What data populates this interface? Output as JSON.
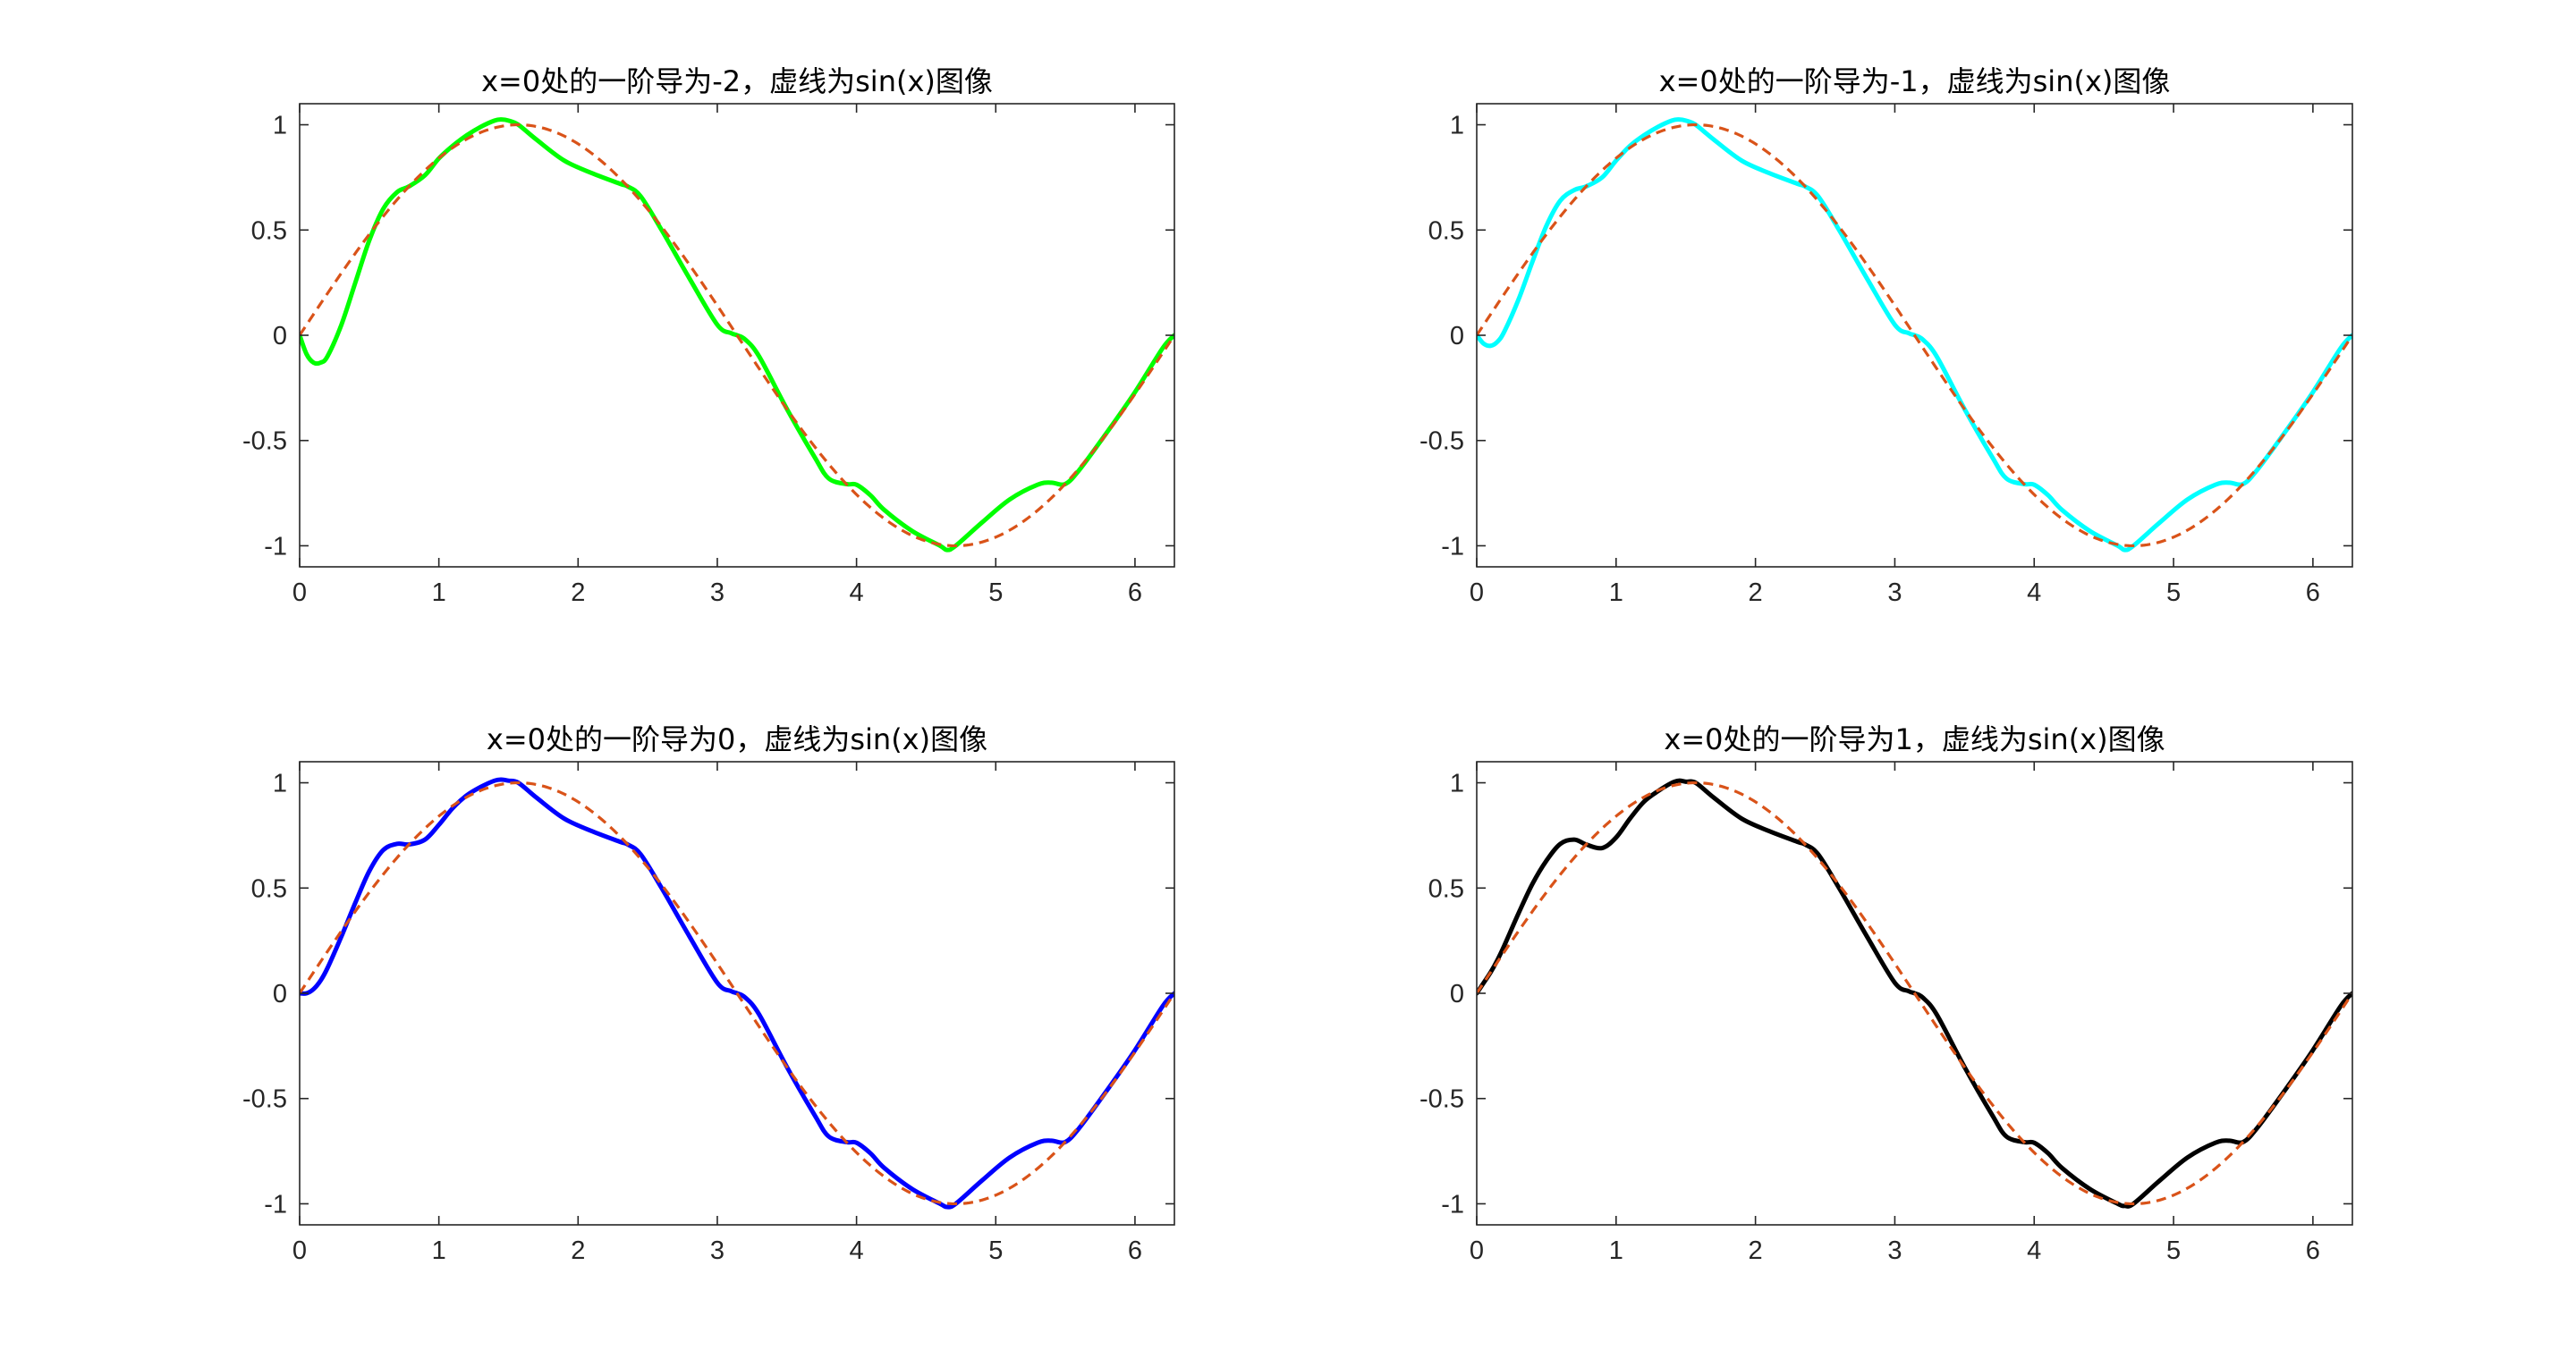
{
  "chart_data": [
    {
      "type": "line",
      "title": "x=0处的一阶导为-2，虚线为sin(x)图像",
      "xlim": [
        0,
        6.2832
      ],
      "ylim": [
        -1.1,
        1.1
      ],
      "xticks": [
        0,
        1,
        2,
        3,
        4,
        5,
        6
      ],
      "xtick_labels": [
        "0",
        "1",
        "2",
        "3",
        "4",
        "5",
        "6"
      ],
      "yticks": [
        1,
        0.5,
        0,
        -0.5,
        -1
      ],
      "ytick_labels": [
        "1",
        "0.5",
        "0",
        "-0.5",
        "-1"
      ],
      "grid": false,
      "series": [
        {
          "style": "solid",
          "color": "#00ff00",
          "x": [
            0,
            0.05,
            0.1,
            0.15,
            0.2,
            0.3,
            0.4,
            0.5,
            0.6,
            0.7,
            0.785,
            0.9,
            1.0,
            1.1,
            1.2,
            1.3,
            1.4,
            1.45,
            1.5,
            1.571,
            1.7,
            1.9,
            2.1,
            2.3,
            2.356,
            2.45,
            2.6,
            2.8,
            3.0,
            3.1,
            3.142,
            3.2,
            3.3,
            3.5,
            3.7,
            3.8,
            3.927,
            4.0,
            4.1,
            4.2,
            4.4,
            4.6,
            4.65,
            4.712,
            4.9,
            5.1,
            5.3,
            5.4,
            5.498,
            5.6,
            5.8,
            6.0,
            6.2,
            6.283
          ],
          "y": [
            0,
            -0.09,
            -0.13,
            -0.13,
            -0.1,
            0.05,
            0.25,
            0.45,
            0.6,
            0.68,
            0.707,
            0.76,
            0.84,
            0.9,
            0.95,
            0.99,
            1.02,
            1.025,
            1.02,
            1.0,
            0.93,
            0.83,
            0.77,
            0.72,
            0.707,
            0.66,
            0.5,
            0.27,
            0.05,
            0.01,
            0.0,
            -0.02,
            -0.1,
            -0.35,
            -0.58,
            -0.68,
            -0.707,
            -0.71,
            -0.76,
            -0.83,
            -0.93,
            -1.0,
            -1.02,
            -1.0,
            -0.89,
            -0.78,
            -0.71,
            -0.7,
            -0.707,
            -0.64,
            -0.46,
            -0.27,
            -0.06,
            0.0
          ]
        },
        {
          "style": "dashed",
          "color": "#d95319",
          "function": "sin(x)",
          "x_range": [
            0,
            6.2832
          ]
        }
      ]
    },
    {
      "type": "line",
      "title": "x=0处的一阶导为-1，虚线为sin(x)图像",
      "xlim": [
        0,
        6.2832
      ],
      "ylim": [
        -1.1,
        1.1
      ],
      "xticks": [
        0,
        1,
        2,
        3,
        4,
        5,
        6
      ],
      "xtick_labels": [
        "0",
        "1",
        "2",
        "3",
        "4",
        "5",
        "6"
      ],
      "yticks": [
        1,
        0.5,
        0,
        -0.5,
        -1
      ],
      "ytick_labels": [
        "1",
        "0.5",
        "0",
        "-0.5",
        "-1"
      ],
      "grid": false,
      "series": [
        {
          "style": "solid",
          "color": "#00ffff",
          "x": [
            0,
            0.05,
            0.1,
            0.15,
            0.2,
            0.3,
            0.4,
            0.5,
            0.6,
            0.7,
            0.785,
            0.9,
            1.0,
            1.1,
            1.2,
            1.3,
            1.4,
            1.45,
            1.5,
            1.571,
            1.7,
            1.9,
            2.1,
            2.3,
            2.356,
            2.45,
            2.6,
            2.8,
            3.0,
            3.1,
            3.142,
            3.2,
            3.3,
            3.5,
            3.7,
            3.8,
            3.927,
            4.0,
            4.1,
            4.2,
            4.4,
            4.6,
            4.65,
            4.712,
            4.9,
            5.1,
            5.3,
            5.4,
            5.498,
            5.6,
            5.8,
            6.0,
            6.2,
            6.283
          ],
          "y": [
            0,
            -0.04,
            -0.05,
            -0.03,
            0.02,
            0.17,
            0.35,
            0.52,
            0.64,
            0.69,
            0.707,
            0.75,
            0.83,
            0.9,
            0.95,
            0.99,
            1.02,
            1.025,
            1.02,
            1.0,
            0.93,
            0.83,
            0.77,
            0.72,
            0.707,
            0.66,
            0.5,
            0.27,
            0.05,
            0.01,
            0.0,
            -0.02,
            -0.1,
            -0.35,
            -0.58,
            -0.68,
            -0.707,
            -0.71,
            -0.76,
            -0.83,
            -0.93,
            -1.0,
            -1.02,
            -1.0,
            -0.89,
            -0.78,
            -0.71,
            -0.7,
            -0.707,
            -0.64,
            -0.46,
            -0.27,
            -0.06,
            0.0
          ]
        },
        {
          "style": "dashed",
          "color": "#d95319",
          "function": "sin(x)",
          "x_range": [
            0,
            6.2832
          ]
        }
      ]
    },
    {
      "type": "line",
      "title": "x=0处的一阶导为0，虚线为sin(x)图像",
      "xlim": [
        0,
        6.2832
      ],
      "ylim": [
        -1.1,
        1.1
      ],
      "xticks": [
        0,
        1,
        2,
        3,
        4,
        5,
        6
      ],
      "xtick_labels": [
        "0",
        "1",
        "2",
        "3",
        "4",
        "5",
        "6"
      ],
      "yticks": [
        1,
        0.5,
        0,
        -0.5,
        -1
      ],
      "ytick_labels": [
        "1",
        "0.5",
        "0",
        "-0.5",
        "-1"
      ],
      "grid": false,
      "series": [
        {
          "style": "solid",
          "color": "#0000ff",
          "x": [
            0,
            0.05,
            0.1,
            0.15,
            0.2,
            0.3,
            0.4,
            0.5,
            0.6,
            0.7,
            0.785,
            0.9,
            1.0,
            1.1,
            1.2,
            1.3,
            1.4,
            1.45,
            1.5,
            1.571,
            1.7,
            1.9,
            2.1,
            2.3,
            2.356,
            2.45,
            2.6,
            2.8,
            3.0,
            3.1,
            3.142,
            3.2,
            3.3,
            3.5,
            3.7,
            3.8,
            3.927,
            4.0,
            4.1,
            4.2,
            4.4,
            4.6,
            4.65,
            4.712,
            4.9,
            5.1,
            5.3,
            5.4,
            5.498,
            5.6,
            5.8,
            6.0,
            6.2,
            6.283
          ],
          "y": [
            0,
            0.0,
            0.02,
            0.06,
            0.12,
            0.27,
            0.43,
            0.58,
            0.68,
            0.71,
            0.707,
            0.73,
            0.8,
            0.88,
            0.94,
            0.98,
            1.01,
            1.015,
            1.01,
            1.0,
            0.93,
            0.83,
            0.77,
            0.72,
            0.707,
            0.66,
            0.5,
            0.27,
            0.05,
            0.01,
            0.0,
            -0.02,
            -0.1,
            -0.35,
            -0.58,
            -0.68,
            -0.707,
            -0.71,
            -0.76,
            -0.83,
            -0.93,
            -1.0,
            -1.015,
            -1.0,
            -0.89,
            -0.78,
            -0.71,
            -0.7,
            -0.707,
            -0.64,
            -0.46,
            -0.27,
            -0.06,
            0.0
          ]
        },
        {
          "style": "dashed",
          "color": "#d95319",
          "function": "sin(x)",
          "x_range": [
            0,
            6.2832
          ]
        }
      ]
    },
    {
      "type": "line",
      "title": "x=0处的一阶导为1，虚线为sin(x)图像",
      "xlim": [
        0,
        6.2832
      ],
      "ylim": [
        -1.1,
        1.1
      ],
      "xticks": [
        0,
        1,
        2,
        3,
        4,
        5,
        6
      ],
      "xtick_labels": [
        "0",
        "1",
        "2",
        "3",
        "4",
        "5",
        "6"
      ],
      "yticks": [
        1,
        0.5,
        0,
        -0.5,
        -1
      ],
      "ytick_labels": [
        "1",
        "0.5",
        "0",
        "-0.5",
        "-1"
      ],
      "grid": false,
      "series": [
        {
          "style": "solid",
          "color": "#000000",
          "x": [
            0,
            0.05,
            0.1,
            0.15,
            0.2,
            0.3,
            0.4,
            0.5,
            0.6,
            0.7,
            0.785,
            0.9,
            1.0,
            1.1,
            1.2,
            1.3,
            1.4,
            1.45,
            1.5,
            1.571,
            1.7,
            1.9,
            2.1,
            2.3,
            2.356,
            2.45,
            2.6,
            2.8,
            3.0,
            3.1,
            3.142,
            3.2,
            3.3,
            3.5,
            3.7,
            3.8,
            3.927,
            4.0,
            4.1,
            4.2,
            4.4,
            4.6,
            4.65,
            4.712,
            4.9,
            5.1,
            5.3,
            5.4,
            5.498,
            5.6,
            5.8,
            6.0,
            6.2,
            6.283
          ],
          "y": [
            0,
            0.05,
            0.1,
            0.16,
            0.23,
            0.38,
            0.52,
            0.63,
            0.71,
            0.73,
            0.707,
            0.69,
            0.74,
            0.83,
            0.91,
            0.96,
            1.0,
            1.01,
            1.005,
            1.0,
            0.93,
            0.83,
            0.77,
            0.72,
            0.707,
            0.66,
            0.5,
            0.27,
            0.05,
            0.01,
            0.0,
            -0.02,
            -0.1,
            -0.35,
            -0.58,
            -0.68,
            -0.707,
            -0.71,
            -0.76,
            -0.83,
            -0.93,
            -1.0,
            -1.01,
            -1.0,
            -0.89,
            -0.78,
            -0.71,
            -0.7,
            -0.707,
            -0.64,
            -0.46,
            -0.27,
            -0.06,
            0.0
          ]
        },
        {
          "style": "dashed",
          "color": "#d95319",
          "function": "sin(x)",
          "x_range": [
            0,
            6.2832
          ]
        }
      ]
    }
  ]
}
